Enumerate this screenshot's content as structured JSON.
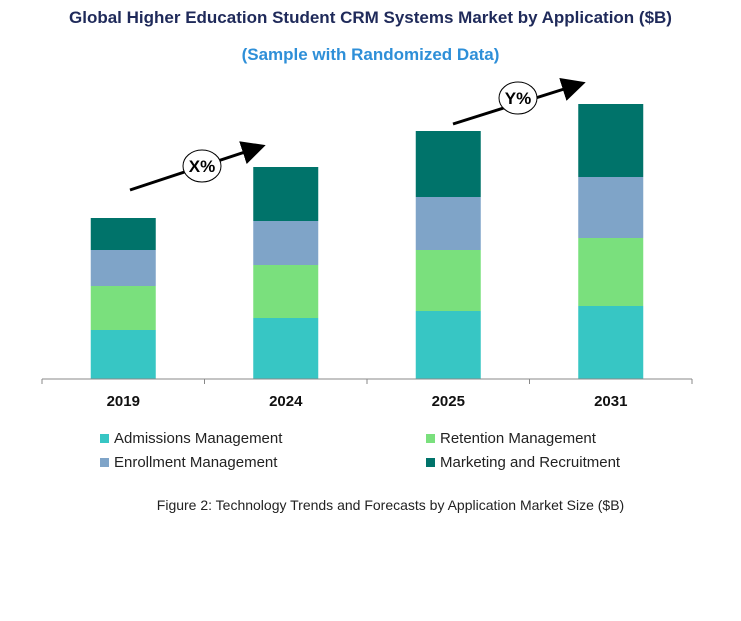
{
  "chart_data": {
    "type": "bar",
    "stacked": true,
    "title": "Global Higher Education Student CRM Systems Market by Application ($B)",
    "subtitle": "(Sample with Randomized Data)",
    "caption": "Figure 2: Technology Trends and Forecasts by Application Market Size ($B)",
    "categories": [
      "2019",
      "2024",
      "2025",
      "2031"
    ],
    "series": [
      {
        "name": "Admissions Management",
        "color": "#37c6c4",
        "values": [
          4.9,
          6.1,
          6.8,
          7.3
        ]
      },
      {
        "name": "Retention Management",
        "color": "#7ae07d",
        "values": [
          4.4,
          5.3,
          6.1,
          6.8
        ]
      },
      {
        "name": "Enrollment Management",
        "color": "#7fa4c8",
        "values": [
          3.6,
          4.4,
          5.3,
          6.1
        ]
      },
      {
        "name": "Marketing and Recruitment",
        "color": "#00736a",
        "values": [
          3.2,
          5.4,
          6.6,
          7.3
        ]
      }
    ],
    "ylim": [
      0,
      27.5
    ],
    "y_axis_shown": false,
    "grid": false,
    "legend_placement": "bottom",
    "annotations": [
      {
        "label": "X%",
        "from": "2019",
        "to": "2024"
      },
      {
        "label": "Y%",
        "from": "2025",
        "to": "2031"
      }
    ]
  }
}
